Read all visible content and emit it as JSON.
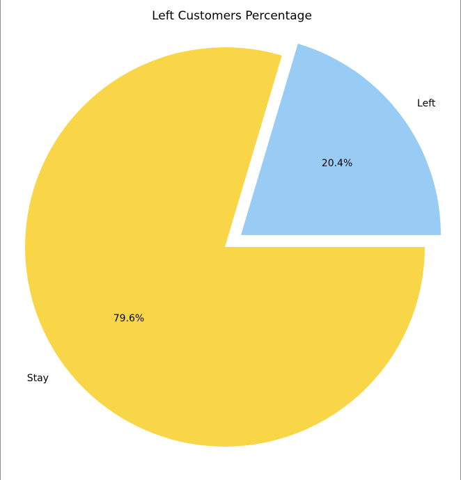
{
  "chart_data": {
    "type": "pie",
    "title": "Left Customers Percentage",
    "categories": [
      "Left",
      "Stay"
    ],
    "values": [
      20.4,
      79.6
    ],
    "value_labels": [
      "20.4%",
      "79.6%"
    ],
    "colors": [
      "#99ccf5",
      "#f8d647"
    ],
    "explode": [
      0.1,
      0
    ],
    "start_angle": 0,
    "legend": "none"
  }
}
